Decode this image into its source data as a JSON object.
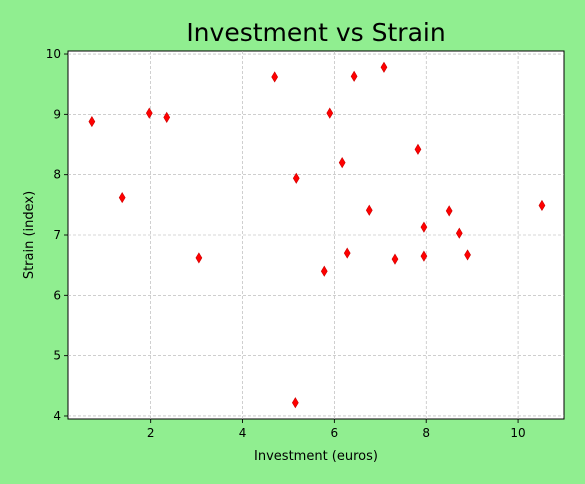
{
  "chart_data": {
    "type": "scatter",
    "title": "Investment vs Strain",
    "xlabel": "Investment (euros)",
    "ylabel": "Strain (index)",
    "xlim": [
      0.2,
      11.0
    ],
    "ylim": [
      3.95,
      10.05
    ],
    "xticks": [
      2,
      4,
      6,
      8,
      10
    ],
    "yticks": [
      4,
      5,
      6,
      7,
      8,
      9,
      10
    ],
    "grid": true,
    "marker": "thin_diamond",
    "marker_color": "#ff0000",
    "background_color": "#90ee90",
    "points": [
      {
        "x": 0.72,
        "y": 8.88
      },
      {
        "x": 1.38,
        "y": 7.62
      },
      {
        "x": 1.97,
        "y": 9.02
      },
      {
        "x": 2.35,
        "y": 8.95
      },
      {
        "x": 3.05,
        "y": 6.62
      },
      {
        "x": 4.7,
        "y": 9.62
      },
      {
        "x": 5.17,
        "y": 7.94
      },
      {
        "x": 5.15,
        "y": 4.22
      },
      {
        "x": 5.78,
        "y": 6.4
      },
      {
        "x": 5.9,
        "y": 9.02
      },
      {
        "x": 6.17,
        "y": 8.2
      },
      {
        "x": 6.28,
        "y": 6.7
      },
      {
        "x": 6.43,
        "y": 9.63
      },
      {
        "x": 6.76,
        "y": 7.41
      },
      {
        "x": 7.08,
        "y": 9.78
      },
      {
        "x": 7.32,
        "y": 6.6
      },
      {
        "x": 7.82,
        "y": 8.42
      },
      {
        "x": 7.95,
        "y": 7.13
      },
      {
        "x": 7.95,
        "y": 6.65
      },
      {
        "x": 8.5,
        "y": 7.4
      },
      {
        "x": 8.72,
        "y": 7.03
      },
      {
        "x": 8.9,
        "y": 6.67
      },
      {
        "x": 10.52,
        "y": 7.49
      }
    ]
  }
}
